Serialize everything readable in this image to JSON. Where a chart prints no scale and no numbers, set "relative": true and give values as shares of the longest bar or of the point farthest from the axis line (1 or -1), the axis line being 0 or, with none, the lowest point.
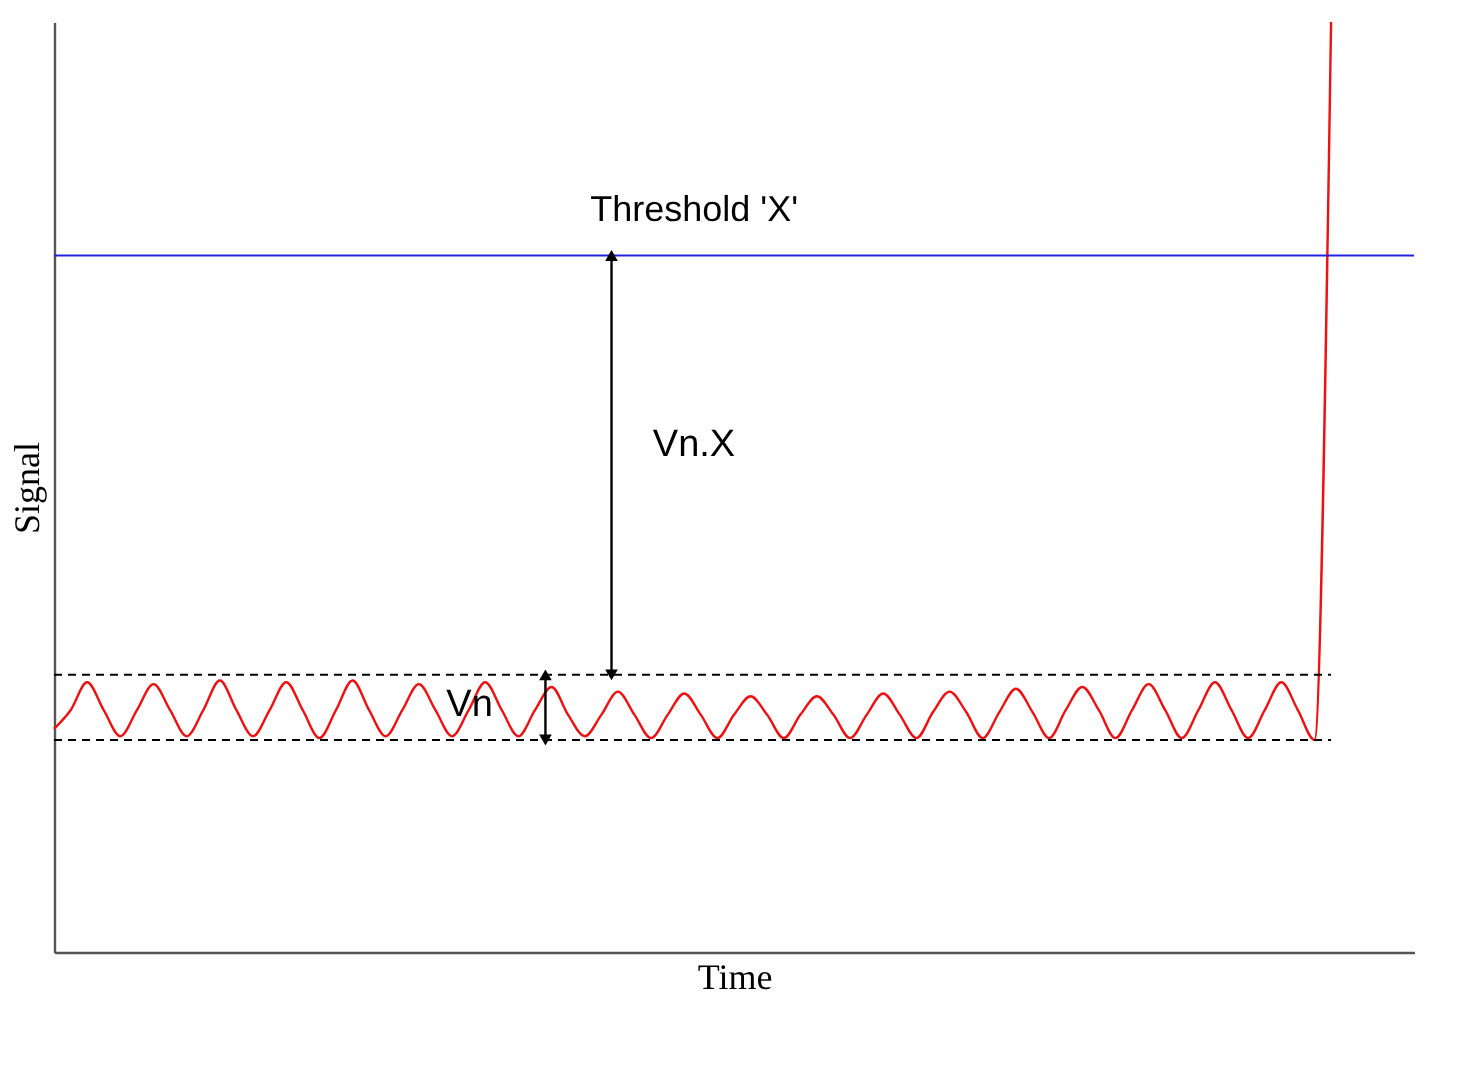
{
  "chart_data": {
    "type": "line",
    "relative": true,
    "xlabel": "Time",
    "ylabel": "Signal",
    "tick_labels": false,
    "grid": false,
    "marker": "none",
    "line_style": "solid",
    "categories": [
      null,
      null,
      null,
      null,
      null,
      null,
      null,
      null,
      null,
      null,
      null,
      null,
      null,
      null,
      null,
      null,
      null,
      null,
      null,
      null,
      null,
      null,
      null,
      null,
      null,
      null,
      null,
      null,
      null,
      null,
      null,
      null,
      null,
      null,
      null,
      null,
      null,
      null,
      null,
      null,
      null,
      null,
      null,
      null,
      null,
      null,
      null,
      null,
      null,
      null,
      null,
      null,
      null,
      null,
      null,
      null,
      null,
      null,
      null,
      null,
      null,
      null,
      null,
      null,
      null,
      null,
      null,
      null,
      null,
      null,
      null,
      null,
      null,
      null,
      null,
      null,
      null,
      null,
      null,
      null,
      null,
      null,
      null
    ],
    "series": [
      {
        "color": "#ee1111",
        "values": [
          0.24,
          0.26,
          0.29,
          0.26,
          0.232,
          0.26,
          0.288,
          0.26,
          0.232,
          0.26,
          0.292,
          0.26,
          0.232,
          0.26,
          0.29,
          0.26,
          0.23,
          0.26,
          0.292,
          0.26,
          0.232,
          0.26,
          0.288,
          0.26,
          0.232,
          0.26,
          0.29,
          0.26,
          0.232,
          0.26,
          0.285,
          0.255,
          0.232,
          0.255,
          0.28,
          0.255,
          0.23,
          0.255,
          0.278,
          0.255,
          0.23,
          0.255,
          0.275,
          0.255,
          0.23,
          0.255,
          0.275,
          0.255,
          0.23,
          0.255,
          0.278,
          0.255,
          0.23,
          0.258,
          0.28,
          0.258,
          0.23,
          0.258,
          0.283,
          0.258,
          0.23,
          0.26,
          0.285,
          0.26,
          0.23,
          0.26,
          0.288,
          0.26,
          0.23,
          0.26,
          0.29,
          0.26,
          0.23,
          0.26,
          0.29,
          0.26,
          0.228,
          1,
          null,
          null,
          null,
          null,
          null
        ]
      }
    ],
    "ref_lines": [
      {
        "axis": "y",
        "value": 0.749,
        "label": "Threshold 'X'",
        "color": "#2222dd",
        "line_style": "solid"
      },
      {
        "axis": "y",
        "value": 0.298,
        "label": null,
        "color": "#000000",
        "line_style": "dashed"
      },
      {
        "axis": "y",
        "value": 0.228,
        "label": null,
        "color": "#000000",
        "line_style": "dashed"
      }
    ],
    "annotations": [
      "Vn.X",
      "Vn"
    ]
  }
}
